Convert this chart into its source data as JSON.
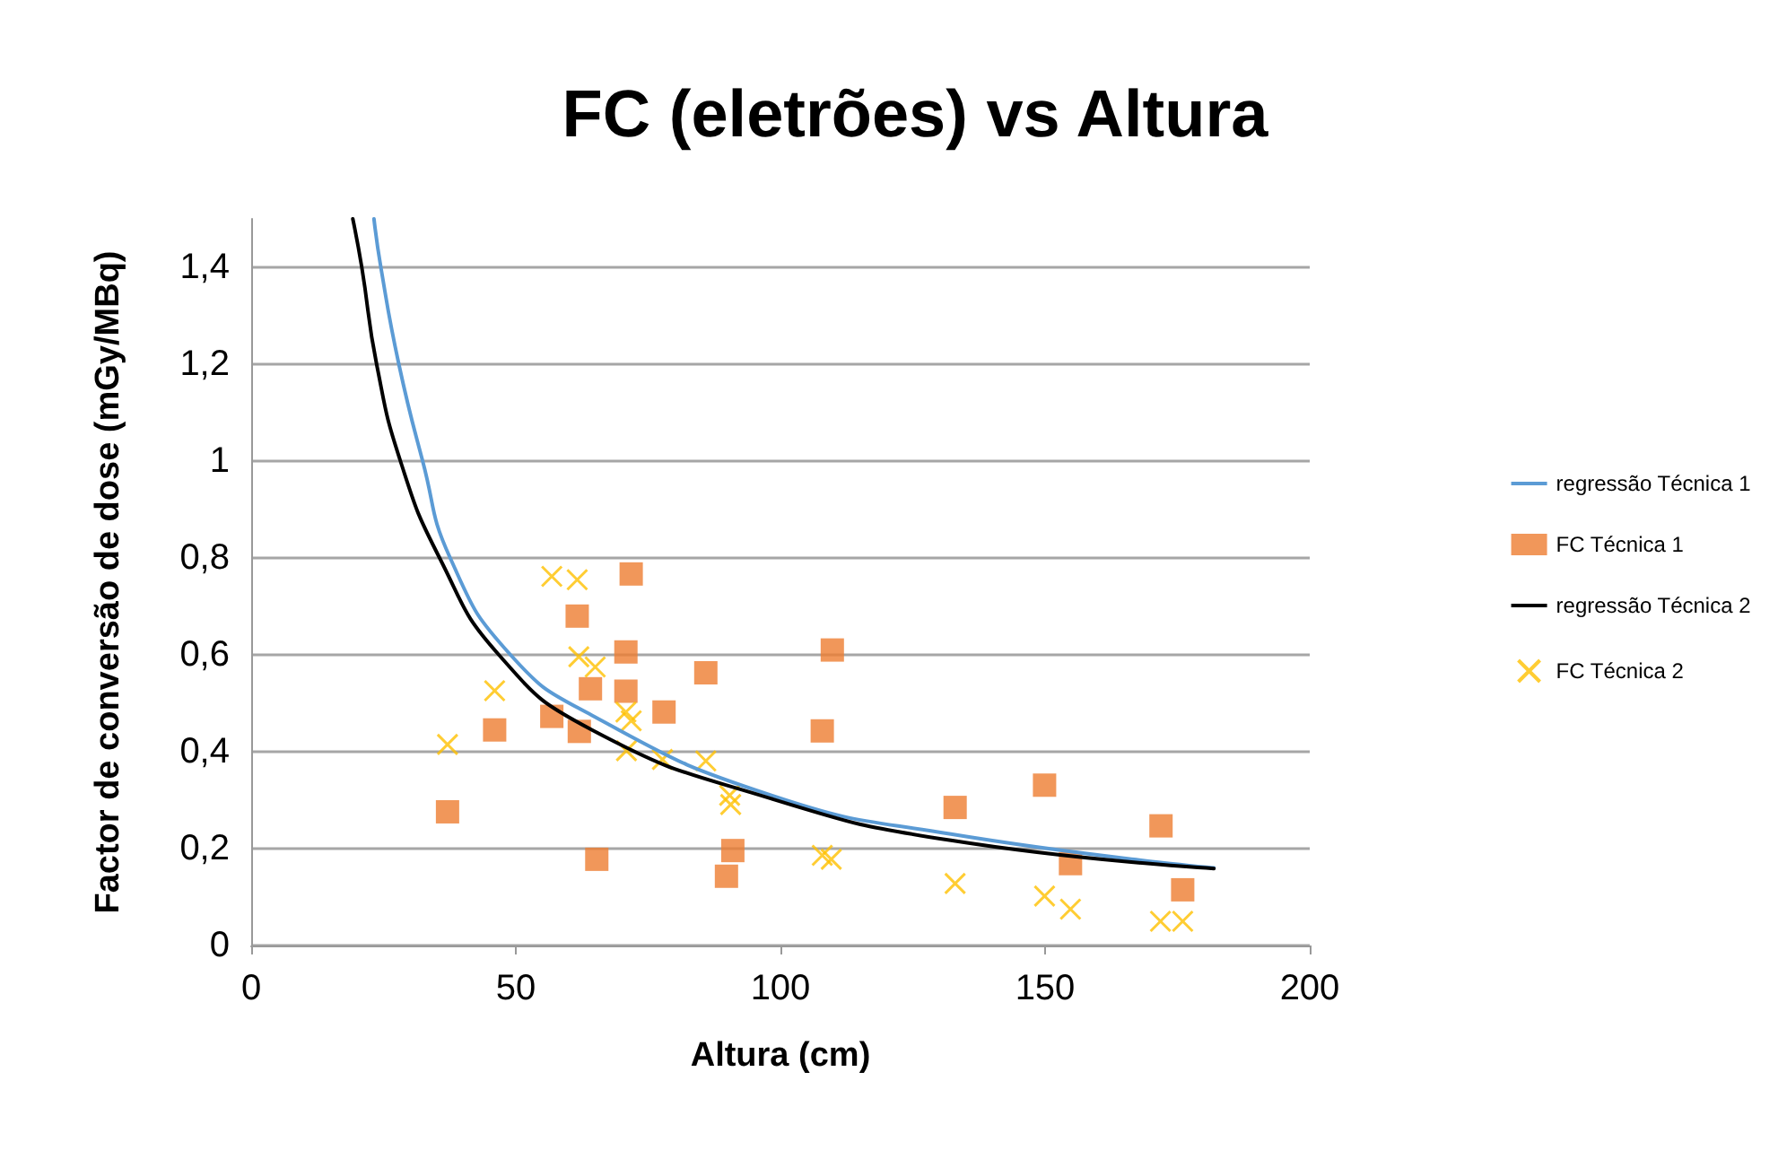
{
  "chart_data": {
    "type": "scatter",
    "title": "FC (eletrões) vs Altura",
    "xlabel": "Altura (cm)",
    "ylabel": "Factor de conversão de dose (mGy/MBq)",
    "xlim": [
      0,
      200
    ],
    "xticks": [
      0,
      50,
      100,
      150,
      200
    ],
    "ylim": [
      0,
      1.5
    ],
    "yticks": [
      0,
      {
        "value": 0.2,
        "label": "0,2"
      },
      {
        "value": 0.4,
        "label": "0,4"
      },
      {
        "value": 0.6,
        "label": "0,6"
      },
      {
        "value": 0.8,
        "label": "0,8"
      },
      1,
      {
        "value": 1.2,
        "label": "1,2"
      },
      {
        "value": 1.4,
        "label": "1,4"
      }
    ],
    "grid": "y",
    "legend": "right",
    "series": [
      {
        "name": "regressão Técnica 1",
        "type": "line",
        "marker": "none",
        "color": "#5b9bd5",
        "x": [
          23.2,
          24.5,
          27.9,
          32.4,
          37.6,
          49,
          64.4,
          98.3,
          132.2,
          181.9
        ],
        "values": [
          1.5,
          1.4,
          1.2,
          1.0,
          0.8,
          0.6,
          0.475,
          0.31,
          0.23,
          0.16
        ]
      },
      {
        "name": "FC Técnica 1",
        "marker": "square",
        "color": "#ed7d31",
        "x": [
          37.1,
          46,
          56.8,
          61.6,
          62,
          64.1,
          65.3,
          71.8,
          70.8,
          70.8,
          85.9,
          78,
          109.8,
          107.9,
          91,
          89.8,
          133,
          149.9,
          154.8,
          171.9,
          176
        ],
        "values": [
          0.276,
          0.445,
          0.473,
          0.68,
          0.442,
          0.53,
          0.178,
          0.767,
          0.606,
          0.525,
          0.563,
          0.482,
          0.61,
          0.443,
          0.196,
          0.143,
          0.285,
          0.331,
          0.169,
          0.247,
          0.115
        ]
      },
      {
        "name": "regressão Técnica 2",
        "type": "line",
        "marker": "none",
        "color": "#000000",
        "x": [
          19.2,
          20.9,
          23.7,
          28.2,
          35.6,
          46.8,
          64.4,
          98.3,
          132.2,
          181.9
        ],
        "values": [
          1.5,
          1.4,
          1.2,
          1.0,
          0.8,
          0.6,
          0.445,
          0.303,
          0.217,
          0.159
        ]
      },
      {
        "name": "FC Técnica 2",
        "marker": "cross",
        "color": "#ffc000",
        "x": [
          37.1,
          46,
          56.8,
          61.6,
          61.9,
          65,
          70.8,
          71.8,
          70.9,
          77.7,
          85.9,
          90.4,
          90.6,
          107.9,
          109.6,
          133,
          149.9,
          154.8,
          171.8,
          176
        ],
        "values": [
          0.415,
          0.526,
          0.762,
          0.755,
          0.596,
          0.575,
          0.482,
          0.464,
          0.402,
          0.384,
          0.381,
          0.31,
          0.291,
          0.186,
          0.178,
          0.128,
          0.102,
          0.075,
          0.05,
          0.05
        ]
      }
    ]
  }
}
